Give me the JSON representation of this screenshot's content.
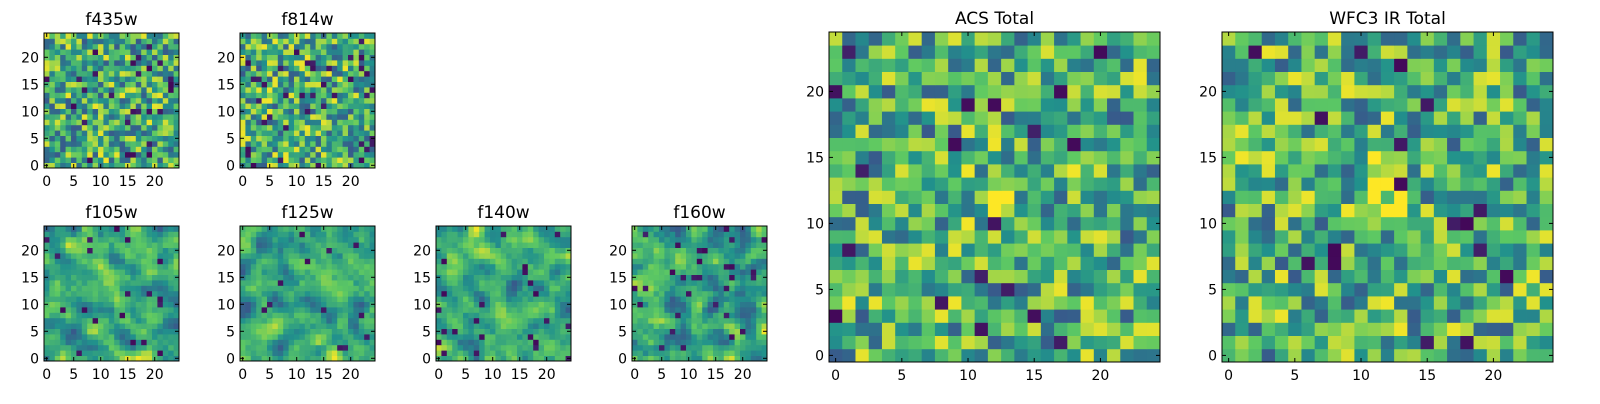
{
  "figure": {
    "colormap": [
      "#440154",
      "#3b528b",
      "#21918c",
      "#5ec962",
      "#fde725"
    ]
  },
  "chart_data": [
    {
      "type": "heatmap",
      "title": "f435w",
      "grid": 25,
      "ticks": [
        0,
        5,
        10,
        15,
        20
      ],
      "xlim": [
        0,
        24
      ],
      "ylim": [
        0,
        24
      ],
      "texture": {
        "seed": 435,
        "smooth": 0,
        "dark_rate": 0.04,
        "blob": null
      }
    },
    {
      "type": "heatmap",
      "title": "f814w",
      "grid": 25,
      "ticks": [
        0,
        5,
        10,
        15,
        20
      ],
      "xlim": [
        0,
        24
      ],
      "ylim": [
        0,
        24
      ],
      "texture": {
        "seed": 814,
        "smooth": 0,
        "dark_rate": 0.05,
        "blob": null
      }
    },
    {
      "type": "heatmap",
      "title": "f105w",
      "grid": 25,
      "ticks": [
        0,
        5,
        10,
        15,
        20
      ],
      "xlim": [
        0,
        24
      ],
      "ylim": [
        0,
        24
      ],
      "texture": {
        "seed": 105,
        "smooth": 1,
        "dark_rate": 0.03,
        "blob": null
      }
    },
    {
      "type": "heatmap",
      "title": "f125w",
      "grid": 25,
      "ticks": [
        0,
        5,
        10,
        15,
        20
      ],
      "xlim": [
        0,
        24
      ],
      "ylim": [
        0,
        24
      ],
      "texture": {
        "seed": 125,
        "smooth": 1,
        "dark_rate": 0.02,
        "blob": null
      }
    },
    {
      "type": "heatmap",
      "title": "f140w",
      "grid": 25,
      "ticks": [
        0,
        5,
        10,
        15,
        20
      ],
      "xlim": [
        0,
        24
      ],
      "ylim": [
        0,
        24
      ],
      "texture": {
        "seed": 140,
        "smooth": 1,
        "dark_rate": 0.04,
        "blob": null
      }
    },
    {
      "type": "heatmap",
      "title": "f160w",
      "grid": 25,
      "ticks": [
        0,
        5,
        10,
        15,
        20
      ],
      "xlim": [
        0,
        24
      ],
      "ylim": [
        0,
        24
      ],
      "texture": {
        "seed": 160,
        "smooth": 1,
        "dark_rate": 0.04,
        "blob": null
      }
    },
    {
      "type": "heatmap",
      "title": "ACS Total",
      "grid": 25,
      "ticks": [
        0,
        5,
        10,
        15,
        20
      ],
      "xlim": [
        0,
        24
      ],
      "ylim": [
        0,
        24
      ],
      "texture": {
        "seed": 7,
        "smooth": 0,
        "dark_rate": 0.035,
        "blob": [
          12,
          12,
          0.5
        ]
      }
    },
    {
      "type": "heatmap",
      "title": "WFC3 IR Total",
      "grid": 25,
      "ticks": [
        0,
        5,
        10,
        15,
        20
      ],
      "xlim": [
        0,
        24
      ],
      "ylim": [
        0,
        24
      ],
      "texture": {
        "seed": 33,
        "smooth": 0,
        "dark_rate": 0.03,
        "blob": [
          11.5,
          12.5,
          1.0
        ]
      }
    }
  ]
}
